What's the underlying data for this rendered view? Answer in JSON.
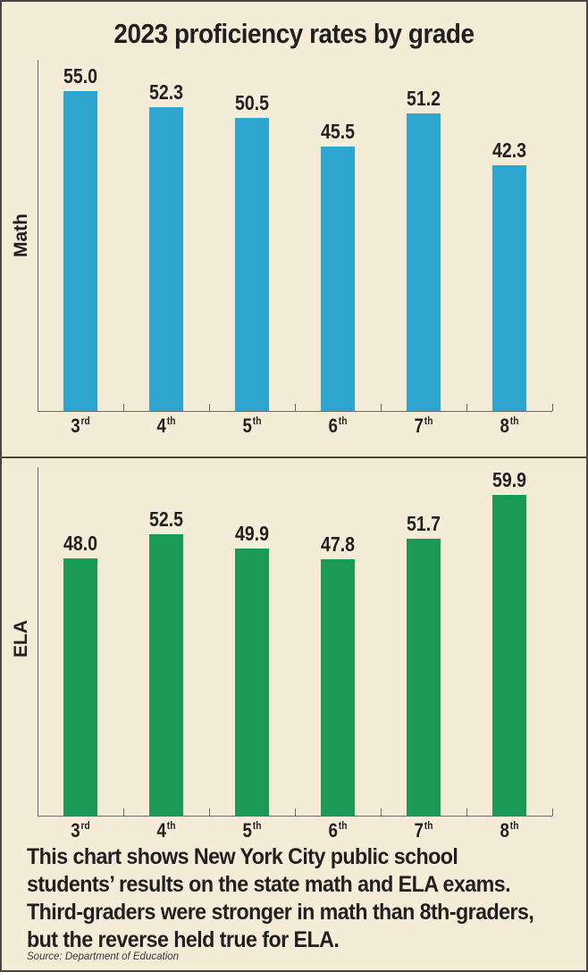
{
  "title": "2023 proficiency rates by grade",
  "colors": {
    "background": "#f5ecd8",
    "math_bar": "#2ea6cf",
    "ela_bar": "#1b9a55",
    "text": "#231f20",
    "border": "#4a4540"
  },
  "panels": [
    {
      "ylabel": "Math",
      "grades": [
        {
          "num": "3",
          "suffix": "rd",
          "value": "55.0"
        },
        {
          "num": "4",
          "suffix": "th",
          "value": "52.3"
        },
        {
          "num": "5",
          "suffix": "th",
          "value": "50.5"
        },
        {
          "num": "6",
          "suffix": "th",
          "value": "45.5"
        },
        {
          "num": "7",
          "suffix": "th",
          "value": "51.2"
        },
        {
          "num": "8",
          "suffix": "th",
          "value": "42.3"
        }
      ]
    },
    {
      "ylabel": "ELA",
      "grades": [
        {
          "num": "3",
          "suffix": "rd",
          "value": "48.0"
        },
        {
          "num": "4",
          "suffix": "th",
          "value": "52.5"
        },
        {
          "num": "5",
          "suffix": "th",
          "value": "49.9"
        },
        {
          "num": "6",
          "suffix": "th",
          "value": "47.8"
        },
        {
          "num": "7",
          "suffix": "th",
          "value": "51.7"
        },
        {
          "num": "8",
          "suffix": "th",
          "value": "59.9"
        }
      ]
    }
  ],
  "caption": "This chart shows New York City public school students’ results on the state math and ELA exams. Third-graders were stronger in math than 8th-graders, but the reverse held true for ELA.",
  "source": "Source: Department of Education",
  "chart_data": [
    {
      "type": "bar",
      "title": "2023 proficiency rates by grade",
      "subtitle": "Math",
      "categories": [
        "3rd",
        "4th",
        "5th",
        "6th",
        "7th",
        "8th"
      ],
      "values": [
        55.0,
        52.3,
        50.5,
        45.5,
        51.2,
        42.3
      ],
      "xlabel": "",
      "ylabel": "Math",
      "ylim": [
        0,
        60
      ],
      "grid": false,
      "color": "#2ea6cf",
      "data_labels": true
    },
    {
      "type": "bar",
      "title": "2023 proficiency rates by grade",
      "subtitle": "ELA",
      "categories": [
        "3rd",
        "4th",
        "5th",
        "6th",
        "7th",
        "8th"
      ],
      "values": [
        48.0,
        52.5,
        49.9,
        47.8,
        51.7,
        59.9
      ],
      "xlabel": "",
      "ylabel": "ELA",
      "ylim": [
        0,
        60
      ],
      "grid": false,
      "color": "#1b9a55",
      "data_labels": true
    }
  ]
}
